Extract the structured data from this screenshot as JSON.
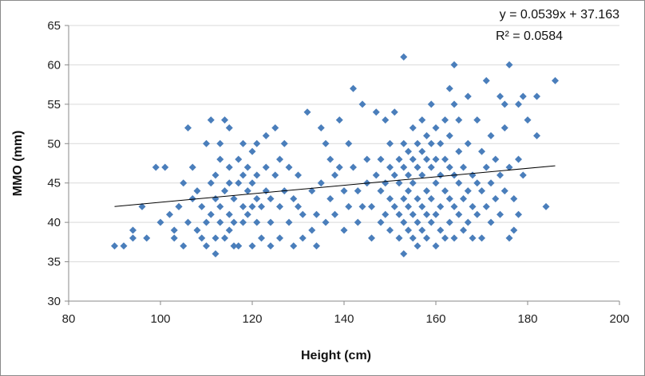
{
  "chart_data": {
    "type": "scatter",
    "title": "",
    "xlabel": "Height (cm)",
    "ylabel": "MMO (mm)",
    "xlim": [
      80,
      200
    ],
    "ylim": [
      30,
      65
    ],
    "xticks": [
      "80",
      "100",
      "120",
      "140",
      "160",
      "180",
      "200"
    ],
    "yticks": [
      "30",
      "35",
      "40",
      "45",
      "50",
      "55",
      "60",
      "65"
    ],
    "grid": "horizontal",
    "marker_color": "#4a7ebb",
    "trendline": {
      "equation": "y = 0.0539x + 37.163",
      "r_squared": "R² = 0.0584",
      "slope": 0.0539,
      "intercept": 37.163,
      "x_range": [
        90,
        186
      ],
      "color": "#000000"
    },
    "series": [
      {
        "points": [
          [
            90,
            37
          ],
          [
            92,
            37
          ],
          [
            94,
            38
          ],
          [
            94,
            39
          ],
          [
            96,
            42
          ],
          [
            97,
            38
          ],
          [
            99,
            47
          ],
          [
            100,
            40
          ],
          [
            101,
            47
          ],
          [
            102,
            41
          ],
          [
            103,
            38
          ],
          [
            103,
            39
          ],
          [
            104,
            42
          ],
          [
            104,
            42
          ],
          [
            105,
            37
          ],
          [
            105,
            45
          ],
          [
            106,
            40
          ],
          [
            106,
            52
          ],
          [
            107,
            43
          ],
          [
            107,
            47
          ],
          [
            108,
            39
          ],
          [
            108,
            44
          ],
          [
            109,
            38
          ],
          [
            109,
            42
          ],
          [
            110,
            40
          ],
          [
            110,
            50
          ],
          [
            110,
            37
          ],
          [
            111,
            41
          ],
          [
            111,
            45
          ],
          [
            111,
            53
          ],
          [
            112,
            36
          ],
          [
            112,
            38
          ],
          [
            112,
            43
          ],
          [
            112,
            46
          ],
          [
            113,
            40
          ],
          [
            113,
            42
          ],
          [
            113,
            48
          ],
          [
            113,
            50
          ],
          [
            114,
            44
          ],
          [
            114,
            53
          ],
          [
            114,
            38
          ],
          [
            115,
            39
          ],
          [
            115,
            41
          ],
          [
            115,
            45
          ],
          [
            115,
            47
          ],
          [
            115,
            52
          ],
          [
            116,
            37
          ],
          [
            116,
            40
          ],
          [
            116,
            43
          ],
          [
            117,
            45
          ],
          [
            117,
            48
          ],
          [
            117,
            37
          ],
          [
            118,
            40
          ],
          [
            118,
            42
          ],
          [
            118,
            46
          ],
          [
            118,
            50
          ],
          [
            119,
            41
          ],
          [
            119,
            44
          ],
          [
            119,
            47
          ],
          [
            120,
            37
          ],
          [
            120,
            42
          ],
          [
            120,
            45
          ],
          [
            120,
            49
          ],
          [
            121,
            40
          ],
          [
            121,
            43
          ],
          [
            121,
            46
          ],
          [
            121,
            50
          ],
          [
            122,
            38
          ],
          [
            122,
            42
          ],
          [
            123,
            44
          ],
          [
            123,
            47
          ],
          [
            123,
            51
          ],
          [
            124,
            37
          ],
          [
            124,
            40
          ],
          [
            124,
            43
          ],
          [
            125,
            46
          ],
          [
            125,
            52
          ],
          [
            126,
            38
          ],
          [
            126,
            42
          ],
          [
            126,
            48
          ],
          [
            127,
            44
          ],
          [
            127,
            50
          ],
          [
            128,
            40
          ],
          [
            128,
            47
          ],
          [
            129,
            37
          ],
          [
            129,
            43
          ],
          [
            130,
            42
          ],
          [
            130,
            46
          ],
          [
            131,
            38
          ],
          [
            131,
            41
          ],
          [
            132,
            54
          ],
          [
            133,
            39
          ],
          [
            133,
            44
          ],
          [
            134,
            37
          ],
          [
            134,
            41
          ],
          [
            135,
            45
          ],
          [
            135,
            52
          ],
          [
            136,
            40
          ],
          [
            136,
            50
          ],
          [
            137,
            43
          ],
          [
            137,
            48
          ],
          [
            138,
            41
          ],
          [
            138,
            46
          ],
          [
            139,
            53
          ],
          [
            139,
            47
          ],
          [
            140,
            39
          ],
          [
            140,
            44
          ],
          [
            141,
            42
          ],
          [
            141,
            50
          ],
          [
            142,
            57
          ],
          [
            142,
            47
          ],
          [
            143,
            40
          ],
          [
            143,
            44
          ],
          [
            144,
            55
          ],
          [
            144,
            42
          ],
          [
            145,
            48
          ],
          [
            145,
            45
          ],
          [
            146,
            38
          ],
          [
            146,
            42
          ],
          [
            147,
            54
          ],
          [
            147,
            46
          ],
          [
            148,
            40
          ],
          [
            148,
            44
          ],
          [
            148,
            48
          ],
          [
            149,
            41
          ],
          [
            149,
            45
          ],
          [
            149,
            53
          ],
          [
            150,
            39
          ],
          [
            150,
            43
          ],
          [
            150,
            47
          ],
          [
            150,
            50
          ],
          [
            151,
            42
          ],
          [
            151,
            46
          ],
          [
            151,
            54
          ],
          [
            152,
            38
          ],
          [
            152,
            41
          ],
          [
            152,
            45
          ],
          [
            152,
            48
          ],
          [
            153,
            61
          ],
          [
            153,
            36
          ],
          [
            153,
            40
          ],
          [
            153,
            43
          ],
          [
            153,
            47
          ],
          [
            153,
            50
          ],
          [
            154,
            39
          ],
          [
            154,
            42
          ],
          [
            154,
            46
          ],
          [
            154,
            49
          ],
          [
            154,
            44
          ],
          [
            155,
            38
          ],
          [
            155,
            41
          ],
          [
            155,
            45
          ],
          [
            155,
            48
          ],
          [
            155,
            52
          ],
          [
            156,
            37
          ],
          [
            156,
            40
          ],
          [
            156,
            43
          ],
          [
            156,
            47
          ],
          [
            156,
            50
          ],
          [
            157,
            39
          ],
          [
            157,
            42
          ],
          [
            157,
            46
          ],
          [
            157,
            49
          ],
          [
            157,
            53
          ],
          [
            158,
            38
          ],
          [
            158,
            41
          ],
          [
            158,
            44
          ],
          [
            158,
            48
          ],
          [
            158,
            51
          ],
          [
            159,
            40
          ],
          [
            159,
            43
          ],
          [
            159,
            47
          ],
          [
            159,
            50
          ],
          [
            159,
            55
          ],
          [
            160,
            37
          ],
          [
            160,
            41
          ],
          [
            160,
            45
          ],
          [
            160,
            48
          ],
          [
            160,
            52
          ],
          [
            161,
            39
          ],
          [
            161,
            42
          ],
          [
            161,
            46
          ],
          [
            161,
            50
          ],
          [
            162,
            38
          ],
          [
            162,
            44
          ],
          [
            162,
            48
          ],
          [
            162,
            53
          ],
          [
            163,
            57
          ],
          [
            163,
            40
          ],
          [
            163,
            43
          ],
          [
            163,
            47
          ],
          [
            163,
            51
          ],
          [
            164,
            60
          ],
          [
            164,
            38
          ],
          [
            164,
            42
          ],
          [
            164,
            46
          ],
          [
            164,
            55
          ],
          [
            165,
            41
          ],
          [
            165,
            45
          ],
          [
            165,
            49
          ],
          [
            165,
            53
          ],
          [
            166,
            39
          ],
          [
            166,
            43
          ],
          [
            166,
            47
          ],
          [
            167,
            56
          ],
          [
            167,
            40
          ],
          [
            167,
            44
          ],
          [
            167,
            50
          ],
          [
            168,
            38
          ],
          [
            168,
            42
          ],
          [
            168,
            46
          ],
          [
            169,
            53
          ],
          [
            169,
            41
          ],
          [
            169,
            45
          ],
          [
            170,
            38
          ],
          [
            170,
            44
          ],
          [
            170,
            49
          ],
          [
            171,
            58
          ],
          [
            171,
            42
          ],
          [
            171,
            47
          ],
          [
            172,
            40
          ],
          [
            172,
            45
          ],
          [
            172,
            51
          ],
          [
            173,
            43
          ],
          [
            173,
            48
          ],
          [
            174,
            56
          ],
          [
            174,
            41
          ],
          [
            174,
            46
          ],
          [
            175,
            55
          ],
          [
            175,
            52
          ],
          [
            175,
            44
          ],
          [
            176,
            60
          ],
          [
            176,
            38
          ],
          [
            176,
            47
          ],
          [
            177,
            39
          ],
          [
            177,
            43
          ],
          [
            178,
            55
          ],
          [
            178,
            48
          ],
          [
            178,
            41
          ],
          [
            179,
            56
          ],
          [
            179,
            46
          ],
          [
            180,
            53
          ],
          [
            182,
            56
          ],
          [
            182,
            51
          ],
          [
            184,
            42
          ],
          [
            186,
            58
          ]
        ]
      }
    ]
  }
}
